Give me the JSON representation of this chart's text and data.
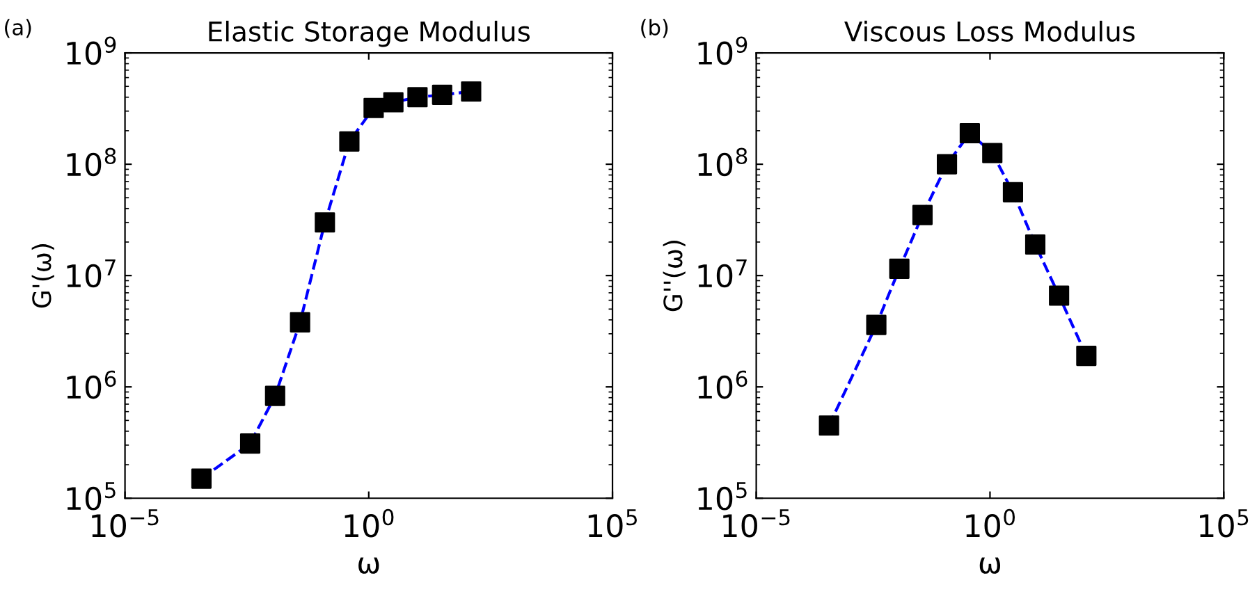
{
  "chart_data": [
    {
      "type": "line",
      "title": "Elastic Storage Modulus",
      "xlabel": "ω",
      "ylabel": "G'(ω)",
      "log": "xy",
      "grid": false,
      "annotations": [
        "(a)"
      ],
      "xlim": [
        1e-05,
        100000
      ],
      "ylim": [
        100000,
        1000000000
      ],
      "xticks": [
        {
          "value": 1e-05,
          "label": "10$^{−5}$"
        },
        {
          "value": 1,
          "label": "10$^{0}$"
        },
        {
          "value": 100000,
          "label": "10$^{5}$"
        }
      ],
      "yticks": [
        {
          "value": 100000,
          "label": "10$^{5}$"
        },
        {
          "value": 1000000,
          "label": "10$^{6}$"
        },
        {
          "value": 10000000,
          "label": "10$^{7}$"
        },
        {
          "value": 100000000,
          "label": "10$^{8}$"
        },
        {
          "value": 1000000000,
          "label": "10$^{9}$"
        }
      ],
      "series": [
        {
          "type": "line",
          "color": "#0000ff",
          "line_style": "dashed",
          "marker": "none",
          "x": [
            0.00037,
            0.0037,
            0.012,
            0.039,
            0.126,
            0.4,
            1.26,
            3.2,
            10,
            32,
            126
          ],
          "values": [
            150000,
            310000,
            830000,
            3800000,
            30000000,
            160000000,
            320000000,
            360000000,
            400000000,
            420000000,
            450000000
          ]
        },
        {
          "type": "scatter",
          "color": "#000000",
          "marker": "square",
          "x": [
            0.00037,
            0.0037,
            0.012,
            0.039,
            0.126,
            0.4,
            1.26,
            3.2,
            10,
            32,
            126
          ],
          "values": [
            150000,
            310000,
            830000,
            3800000,
            30000000,
            160000000,
            320000000,
            360000000,
            400000000,
            420000000,
            450000000
          ]
        }
      ]
    },
    {
      "type": "line",
      "title": "Viscous Loss Modulus",
      "xlabel": "ω",
      "ylabel": "G''(ω)",
      "log": "xy",
      "grid": false,
      "annotations": [
        "(b)"
      ],
      "xlim": [
        1e-05,
        100000
      ],
      "ylim": [
        100000,
        1000000000
      ],
      "xticks": [
        {
          "value": 1e-05,
          "label": "10$^{−5}$"
        },
        {
          "value": 1,
          "label": "10$^{0}$"
        },
        {
          "value": 100000,
          "label": "10$^{5}$"
        }
      ],
      "yticks": [
        {
          "value": 100000,
          "label": "10$^{5}$"
        },
        {
          "value": 1000000,
          "label": "10$^{6}$"
        },
        {
          "value": 10000000,
          "label": "10$^{7}$"
        },
        {
          "value": 100000000,
          "label": "10$^{8}$"
        },
        {
          "value": 1000000000,
          "label": "10$^{9}$"
        }
      ],
      "series": [
        {
          "type": "line",
          "color": "#0000ff",
          "line_style": "dashed",
          "marker": "none",
          "x": [
            0.00036,
            0.0037,
            0.0115,
            0.036,
            0.12,
            0.37,
            1.12,
            3.1,
            9.3,
            30,
            115
          ],
          "values": [
            450000,
            3600000,
            11500000,
            35000000,
            100000000,
            190000000,
            126000000,
            56000000,
            19000000,
            6600000,
            1900000
          ]
        },
        {
          "type": "scatter",
          "color": "#000000",
          "marker": "square",
          "x": [
            0.00036,
            0.0037,
            0.0115,
            0.036,
            0.12,
            0.37,
            1.12,
            3.1,
            9.3,
            30,
            115
          ],
          "values": [
            450000,
            3600000,
            11500000,
            35000000,
            100000000,
            190000000,
            126000000,
            56000000,
            19000000,
            6600000,
            1900000
          ]
        }
      ]
    }
  ]
}
